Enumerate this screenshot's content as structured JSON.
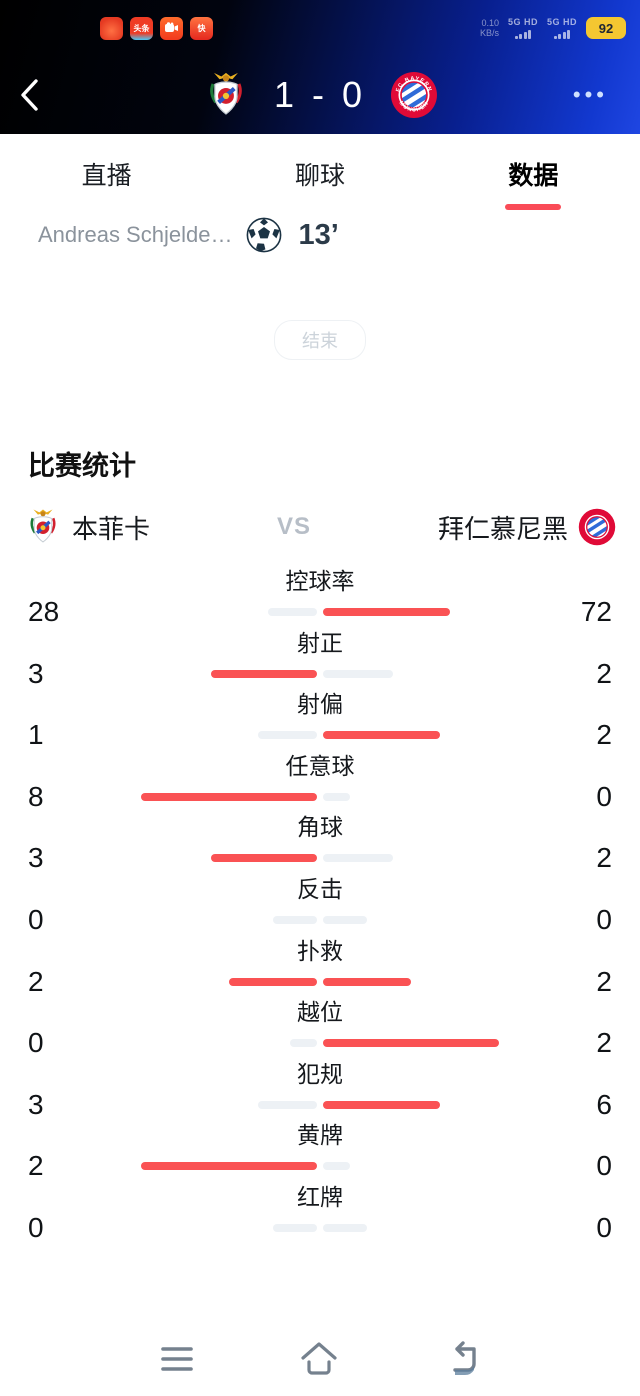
{
  "status_bar": {
    "net_speed_value": "0.10",
    "net_speed_unit": "KB/s",
    "sim1_label": "5G HD",
    "sim2_label": "5G HD",
    "battery_percent": "92",
    "notification_icons": [
      "novel-app-icon",
      "toutiao-app-icon",
      "kuaishou-app-icon",
      "kuaishou-lite-app-icon"
    ]
  },
  "header": {
    "score": "1 - 0",
    "home_logo": "benfica-crest",
    "away_logo": "bayern-crest",
    "more_label": "•••",
    "bayern_text_top": "FC BAYERN",
    "bayern_text_bottom": "MÜNCHEN"
  },
  "tabs": [
    {
      "label": "直播",
      "active": false
    },
    {
      "label": "聊球",
      "active": false
    },
    {
      "label": "数据",
      "active": true
    }
  ],
  "event": {
    "scorer": "Andreas Schjelde…",
    "minute": "13’"
  },
  "match_status": "结束",
  "section_title": "比赛统计",
  "teams": {
    "home": "本菲卡",
    "vs": "VS",
    "away": "拜仁慕尼黑"
  },
  "chart_data": {
    "type": "bar",
    "title": "比赛统计",
    "layout": "horizontal back-to-back bars, home left / away right, larger value highlighted red",
    "categories": [
      "控球率",
      "射正",
      "射偏",
      "任意球",
      "角球",
      "反击",
      "扑救",
      "越位",
      "犯规",
      "黄牌",
      "红牌"
    ],
    "series": [
      {
        "name": "本菲卡",
        "values": [
          28,
          3,
          1,
          8,
          3,
          0,
          2,
          0,
          3,
          2,
          0
        ]
      },
      {
        "name": "拜仁慕尼黑",
        "values": [
          72,
          2,
          2,
          0,
          2,
          0,
          2,
          2,
          6,
          0,
          0
        ]
      }
    ],
    "highlight_color": "#fa5254",
    "muted_color": "#edf1f5"
  },
  "bottom_nav": [
    "menu",
    "home",
    "back"
  ]
}
